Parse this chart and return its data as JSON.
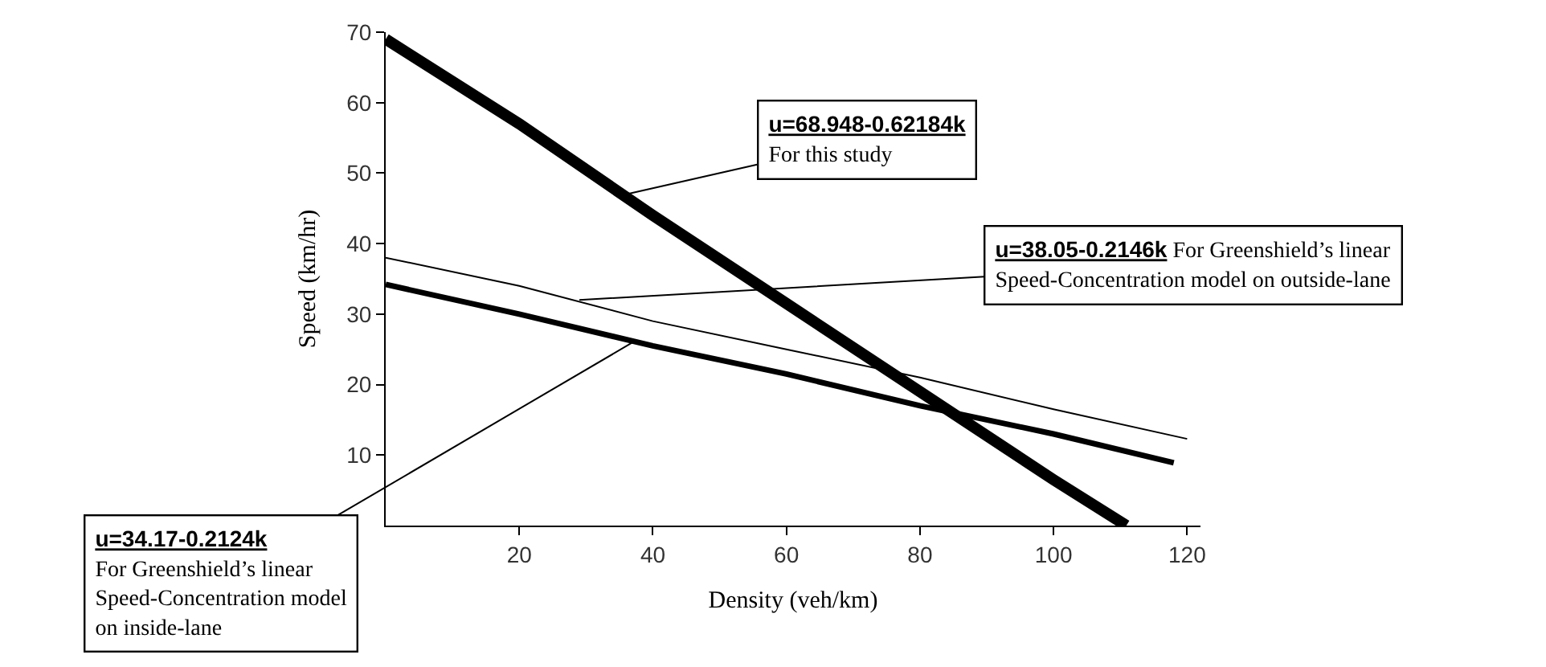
{
  "chart_data": {
    "type": "line",
    "xlabel": "Density (veh/km)",
    "ylabel": "Speed (km/hr)",
    "xlim": [
      0,
      122
    ],
    "xticks": [
      20,
      40,
      60,
      80,
      100,
      120
    ],
    "ylim": [
      0,
      70
    ],
    "yticks": [
      10,
      20,
      30,
      40,
      50,
      60,
      70
    ],
    "marker": "none",
    "line_style": "solid",
    "series": [
      {
        "color": "#000000",
        "x": [
          0,
          20,
          40,
          60,
          80,
          100,
          110.9
        ],
        "values": [
          69,
          57,
          44,
          31.5,
          19,
          6.5,
          0
        ]
      },
      {
        "color": "#000000",
        "x": [
          0,
          20,
          40,
          60,
          80,
          100,
          120
        ],
        "values": [
          38,
          34,
          29,
          25,
          21,
          16.5,
          12.3
        ]
      },
      {
        "color": "#000000",
        "x": [
          0,
          20,
          40,
          60,
          80,
          100,
          118
        ],
        "values": [
          34.2,
          30,
          25.5,
          21.5,
          17,
          13,
          8.9
        ]
      }
    ],
    "annotations": [
      {
        "text": "u=68.948-0.62184k\nFor this study",
        "x": 36,
        "y": 47
      },
      {
        "text": "u=38.05-0.2146k For Greenshield’s linear\nSpeed-Concentration model on outside-lane",
        "x": 29,
        "y": 32
      },
      {
        "text": "u=34.17-0.2124k\nFor Greenshield’s linear\nSpeed-Concentration model\non inside-lane",
        "x": 37,
        "y": 26
      }
    ]
  }
}
